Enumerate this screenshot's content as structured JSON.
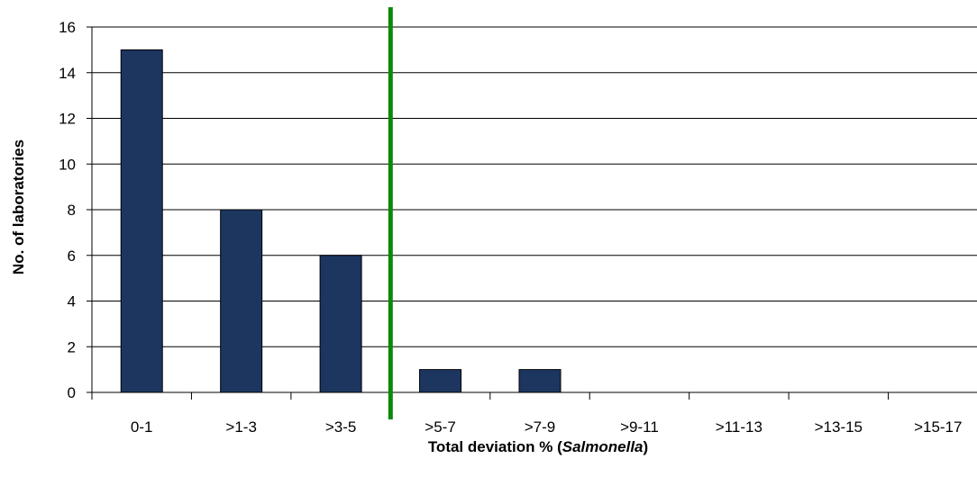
{
  "chart_data": {
    "type": "bar",
    "categories": [
      ">0-1",
      ">1-3",
      ">3-5",
      ">5-7",
      ">7-9",
      ">9-11",
      ">11-13",
      ">13-15",
      ">15-17"
    ],
    "category_labels": [
      "0-1",
      ">1-3",
      ">3-5",
      ">5-7",
      ">7-9",
      ">9-11",
      ">11-13",
      ">13-15",
      ">15-17"
    ],
    "values": [
      15,
      8,
      6,
      1,
      1,
      0,
      0,
      0,
      0
    ],
    "title": "",
    "xlabel": {
      "prefix": "Total deviation % (",
      "emphasis": "Salmonella",
      "suffix": ")"
    },
    "ylabel": "No. of laboratories",
    "ylim": [
      0,
      16
    ],
    "yticks": [
      0,
      2,
      4,
      6,
      8,
      10,
      12,
      14,
      16
    ],
    "grid": true,
    "legend": "none",
    "threshold_line": {
      "between_categories": [
        ">3-5",
        ">5-7"
      ],
      "color": "#0a8a0a"
    },
    "bar_color": "#1c3660"
  }
}
